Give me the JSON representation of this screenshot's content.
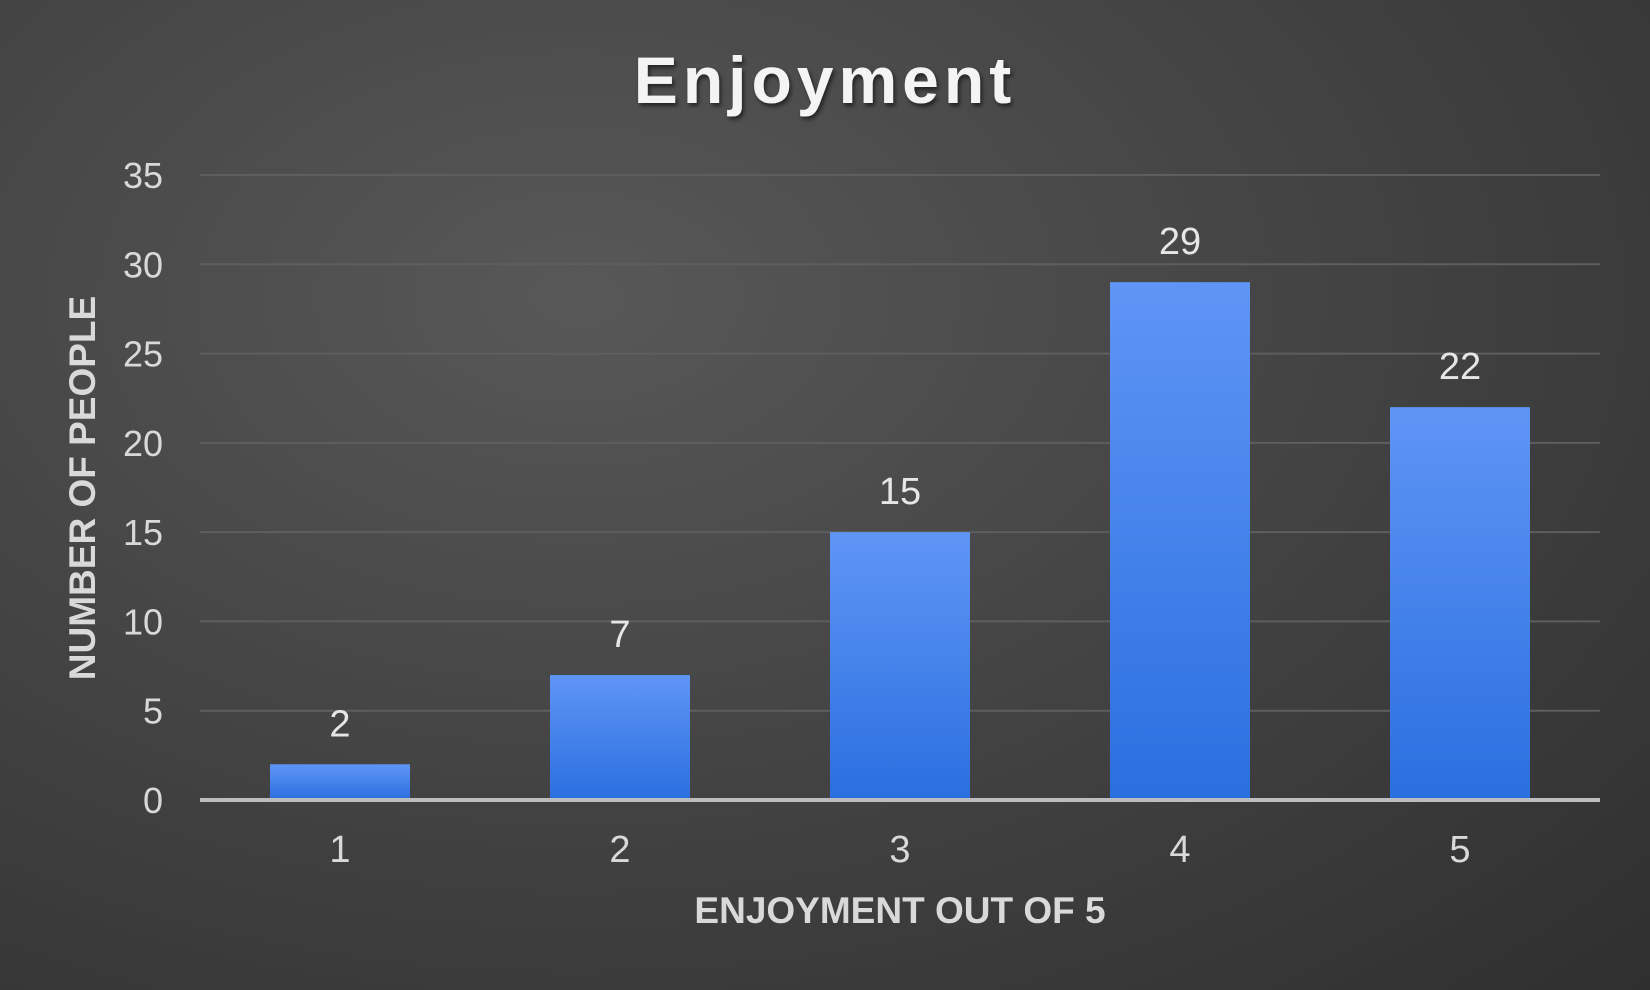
{
  "chart_data": {
    "type": "bar",
    "title": "Enjoyment",
    "xlabel": "ENJOYMENT OUT OF 5",
    "ylabel": "NUMBER OF PEOPLE",
    "categories": [
      "1",
      "2",
      "3",
      "4",
      "5"
    ],
    "values": [
      2,
      7,
      15,
      29,
      22
    ],
    "data_labels": [
      "2",
      "7",
      "15",
      "29",
      "22"
    ],
    "ylim": [
      0,
      35
    ],
    "y_ticks": [
      "0",
      "5",
      "10",
      "15",
      "20",
      "25",
      "30",
      "35"
    ],
    "grid": true,
    "legend": "none",
    "colors": {
      "bar_top": "#5f95f5",
      "bar_bottom": "#2a6fe0",
      "gridline": "#5e5e5e",
      "axis_line": "#bdbdbd"
    }
  }
}
